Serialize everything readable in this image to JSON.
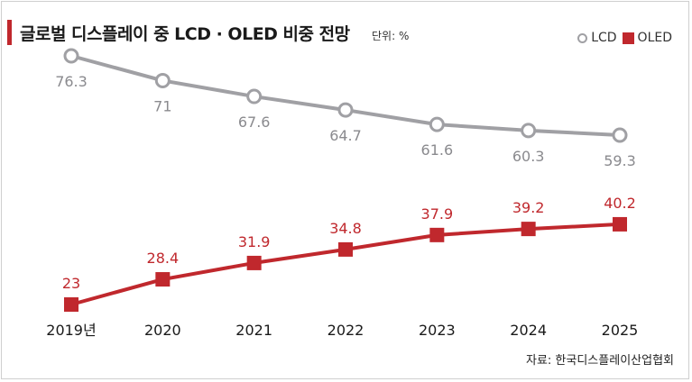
{
  "title": "글로벌 디스플레이 중 LCD · OLED 비중 전망",
  "unit": "단위: %",
  "source": "자료: 한국디스플레이산업협회",
  "chart_data": {
    "type": "line",
    "title": "글로벌 디스플레이 중 LCD · OLED 비중 전망",
    "categories": [
      "2019년",
      "2020",
      "2021",
      "2022",
      "2023",
      "2024",
      "2025"
    ],
    "series": [
      {
        "name": "LCD",
        "values": [
          76.3,
          71,
          67.6,
          64.7,
          61.6,
          60.3,
          59.3
        ],
        "labels": [
          "76.3",
          "71",
          "67.6",
          "64.7",
          "61.6",
          "60.3",
          "59.3"
        ],
        "color": "#a0a0a4",
        "marker": "circle"
      },
      {
        "name": "OLED",
        "values": [
          23,
          28.4,
          31.9,
          34.8,
          37.9,
          39.2,
          40.2
        ],
        "labels": [
          "23",
          "28.4",
          "31.9",
          "34.8",
          "37.9",
          "39.2",
          "40.2"
        ],
        "color": "#c0282d",
        "marker": "square"
      }
    ],
    "ylim": [
      20,
      80
    ],
    "grid": false,
    "legend": "top-right"
  }
}
